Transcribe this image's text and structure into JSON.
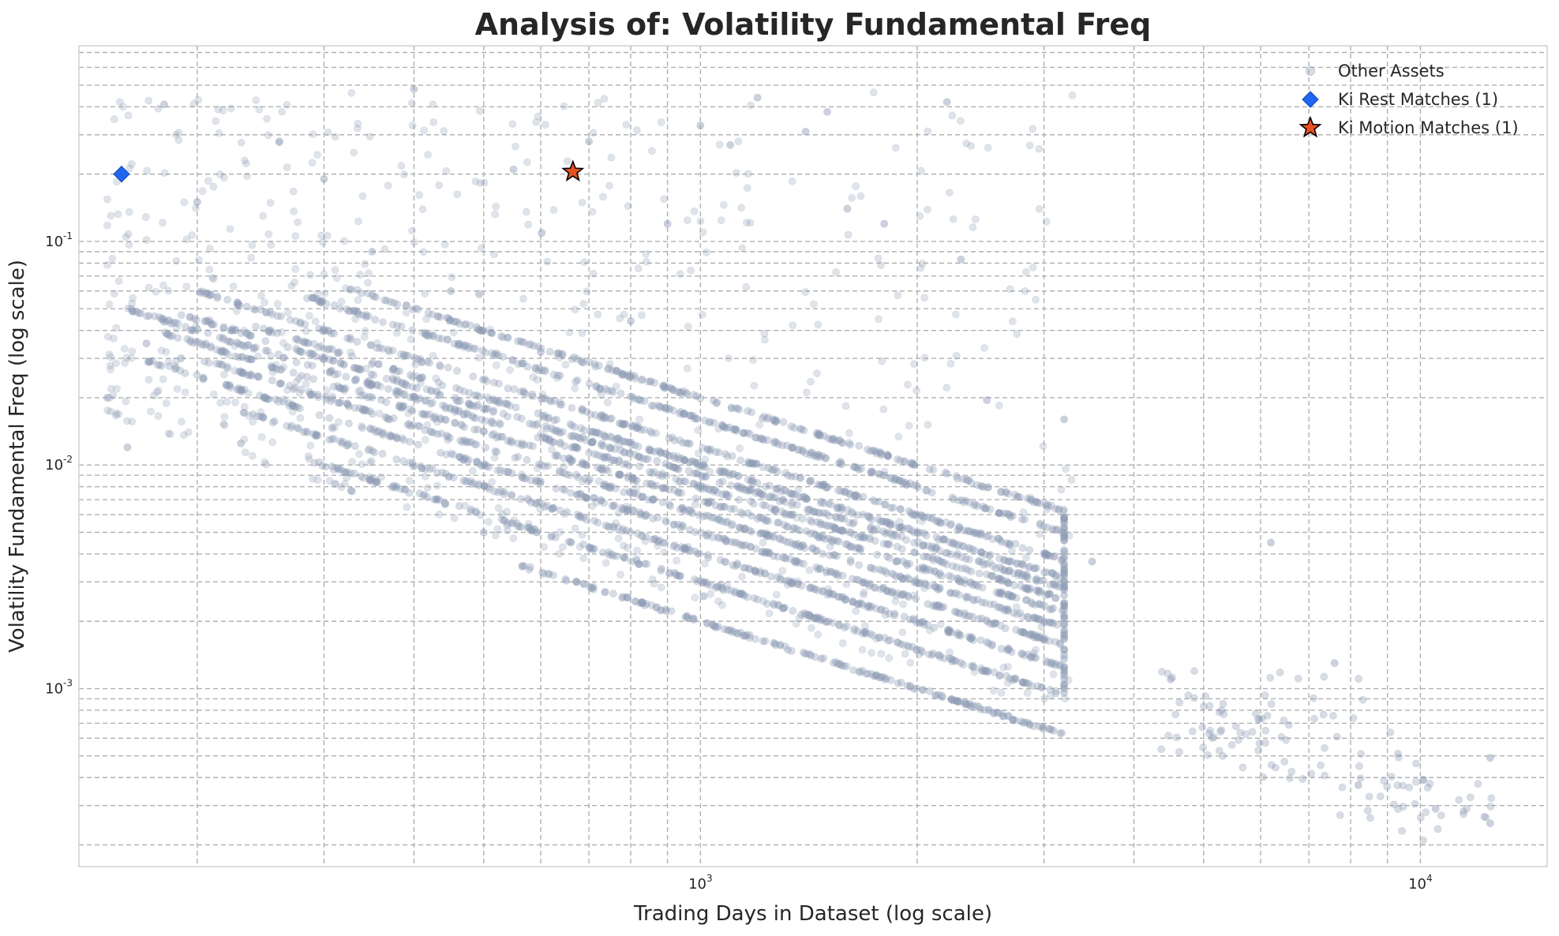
{
  "chart_data": {
    "type": "scatter",
    "title": "Analysis of: Volatility Fundamental Freq",
    "xlabel": "Trading Days in Dataset (log scale)",
    "ylabel": "Volatility Fundamental Freq (log scale)",
    "xscale": "log",
    "yscale": "log",
    "xlim": [
      137,
      15000
    ],
    "ylim": [
      0.00016,
      0.75
    ],
    "x_tick_labels": [
      "10^3",
      "10^4"
    ],
    "y_tick_labels": [
      "10^-3",
      "10^-2",
      "10^-1"
    ],
    "grid": true,
    "legend_position": "top-right",
    "series": [
      {
        "name": "Other Assets",
        "marker": "circle",
        "color": "#8b9bb4",
        "note": "dense cloud of points following y ≈ c / x bands for x up to ~3200, plus sparse points up to ~12500",
        "band_constants": [
          2,
          3,
          4,
          5,
          6,
          7,
          8,
          9,
          10,
          12,
          16,
          20
        ],
        "x_max_dense": 3200,
        "sample_points": [
          [
            150,
            0.02
          ],
          [
            160,
            0.012
          ],
          [
            170,
            0.035
          ],
          [
            180,
            0.41
          ],
          [
            190,
            0.03
          ],
          [
            200,
            0.15
          ],
          [
            230,
            0.0125
          ],
          [
            260,
            0.28
          ],
          [
            300,
            0.19
          ],
          [
            350,
            0.09
          ],
          [
            400,
            0.48
          ],
          [
            450,
            0.06
          ],
          [
            500,
            0.005
          ],
          [
            550,
            0.21
          ],
          [
            600,
            0.032
          ],
          [
            700,
            0.28
          ],
          [
            800,
            0.044
          ],
          [
            900,
            0.12
          ],
          [
            1000,
            0.33
          ],
          [
            1100,
            0.27
          ],
          [
            1200,
            0.44
          ],
          [
            1400,
            0.31
          ],
          [
            1500,
            0.38
          ],
          [
            1600,
            0.14
          ],
          [
            1800,
            0.12
          ],
          [
            2200,
            0.42
          ],
          [
            2300,
            0.083
          ],
          [
            2500,
            0.0195
          ],
          [
            3200,
            0.016
          ],
          [
            3500,
            0.0037
          ],
          [
            4500,
            0.0011
          ],
          [
            6200,
            0.0045
          ],
          [
            7600,
            0.0013
          ],
          [
            8200,
            0.00037
          ],
          [
            10500,
            0.00029
          ],
          [
            12500,
            0.00049
          ],
          [
            12500,
            0.00025
          ]
        ]
      },
      {
        "name": "Ki Rest Matches (1)",
        "marker": "diamond",
        "color": "#1f66f0",
        "points": [
          [
            157,
            0.2
          ]
        ]
      },
      {
        "name": "Ki Motion Matches (1)",
        "marker": "star",
        "color": "#e8501f",
        "points": [
          [
            665,
            0.205
          ]
        ]
      }
    ]
  }
}
